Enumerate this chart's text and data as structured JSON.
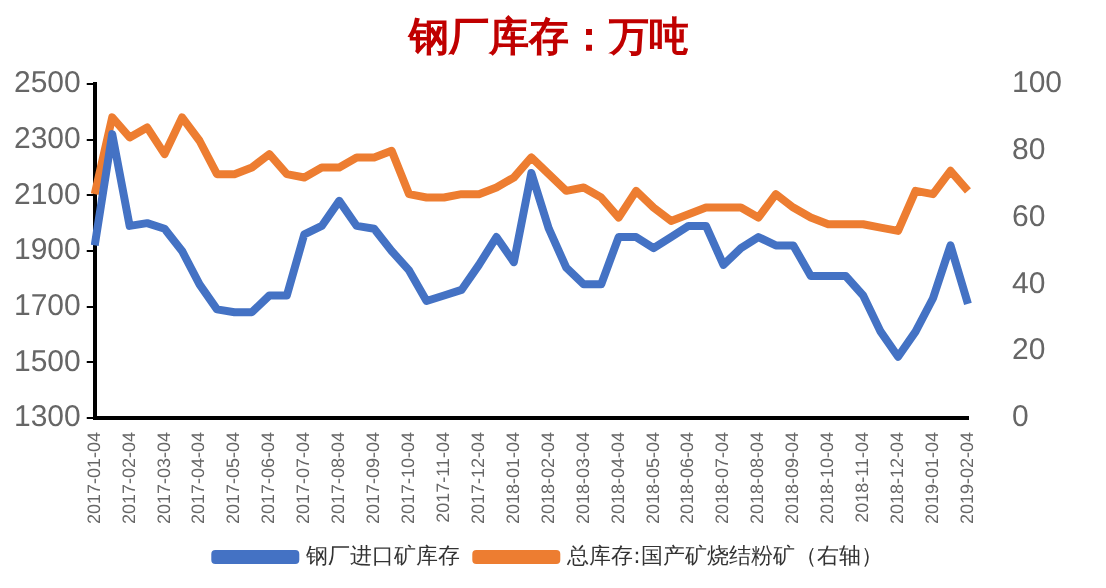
{
  "chart_data": {
    "type": "line",
    "title": "钢厂库存：万吨",
    "categories": [
      "2017-01-04",
      null,
      "2017-02-04",
      null,
      "2017-03-04",
      null,
      "2017-04-04",
      null,
      "2017-05-04",
      null,
      "2017-06-04",
      null,
      "2017-07-04",
      null,
      "2017-08-04",
      null,
      "2017-09-04",
      null,
      "2017-10-04",
      null,
      "2017-11-04",
      null,
      "2017-12-04",
      null,
      "2018-01-04",
      null,
      "2018-02-04",
      null,
      "2018-03-04",
      null,
      "2018-04-04",
      null,
      "2018-05-04",
      null,
      "2018-06-04",
      null,
      "2018-07-04",
      null,
      "2018-08-04",
      null,
      "2018-09-04",
      null,
      "2018-10-04",
      null,
      "2018-11-04",
      null,
      "2018-12-04",
      null,
      "2019-01-04",
      null,
      "2019-02-04"
    ],
    "series": [
      {
        "name": "钢厂进口矿库存",
        "color": "#4472c4",
        "values": [
          1920,
          2320,
          1990,
          2000,
          1980,
          1900,
          1780,
          1690,
          1680,
          1680,
          1740,
          1740,
          1960,
          1990,
          2080,
          1990,
          1980,
          1900,
          1830,
          1720,
          1740,
          1760,
          1850,
          1950,
          1860,
          2180,
          1980,
          1840,
          1780,
          1780,
          1950,
          1950,
          1910,
          1950,
          1990,
          1990,
          1850,
          1910,
          1950,
          1920,
          1920,
          1810,
          1810,
          1810,
          1740,
          1610,
          1520,
          1610,
          1730,
          1920,
          1710
        ]
      },
      {
        "name": "总库存:国产矿烧结粉矿（右轴）",
        "color": "#ed7d31",
        "axis": "y2",
        "values": [
          67,
          90,
          84,
          87,
          79,
          90,
          83,
          73,
          73,
          75,
          79,
          73,
          72,
          75,
          75,
          78,
          78,
          80,
          67,
          66,
          66,
          67,
          67,
          69,
          72,
          78,
          73,
          68,
          69,
          66,
          60,
          68,
          63,
          59,
          61,
          63,
          63,
          63,
          60,
          67,
          63,
          60,
          58,
          58,
          58,
          57,
          56,
          68,
          67,
          74,
          68
        ]
      }
    ],
    "ylim": [
      1300,
      2500
    ],
    "yticks": [
      1300,
      1500,
      1700,
      1900,
      2100,
      2300,
      2500
    ],
    "y2lim": [
      0,
      100
    ],
    "y2ticks": [
      0,
      20,
      40,
      60,
      80,
      100
    ],
    "grid": false,
    "legend": "bottom",
    "marker": "none",
    "line_style": "solid"
  }
}
